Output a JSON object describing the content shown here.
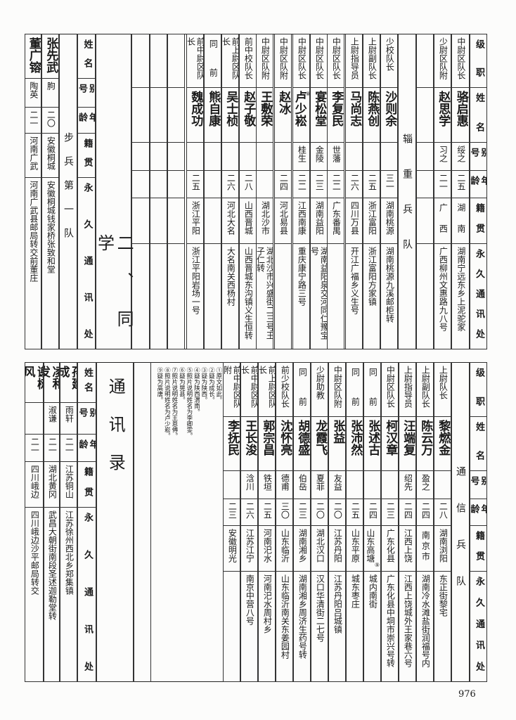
{
  "title_part1": "二、同学",
  "title_part2": "通讯录",
  "page_number": "976",
  "top_right": {
    "header": [
      "级职",
      "姓名",
      "别号",
      "年龄",
      "籍贯",
      "永久通讯处"
    ],
    "unit_title": "辎重兵队",
    "rows": [
      {
        "rank": "中尉区队长",
        "name": "骆启惠",
        "alias": "绥之",
        "age": "二五",
        "origin": "湖南",
        "address": "湖南宁远东乡上泥驼家"
      },
      {
        "rank": "少尉区队附",
        "name": "赵思学",
        "alias": "习之",
        "age": "二一",
        "origin": "广西",
        "address": "广西柳州文惠路九八号"
      },
      {
        "rank": "少校队长",
        "name": "沙则余",
        "alias": "",
        "age": "三一",
        "origin": "湖南桃源",
        "address": "湖南桃源九溪邮柜转"
      },
      {
        "rank": "上尉副队长",
        "name": "陈燕创",
        "alias": "",
        "age": "二五",
        "origin": "浙江富阳",
        "address": "浙江富阳方家镇"
      },
      {
        "rank": "上尉指导员",
        "name": "马尚志",
        "alias": "",
        "age": "二六",
        "origin": "四川万县",
        "address": "开江广福乡义生号"
      },
      {
        "rank": "中尉区队长",
        "name": "李复民",
        "alias": "世藩",
        "age": "二二",
        "origin": "广东番禺",
        "address": ""
      },
      {
        "rank": "中尉区队长",
        "name": "宴松堂",
        "alias": "金陵",
        "age": "二三",
        "origin": "湖南益阳",
        "address": "湖南益阳泉交河同仁豫宝号"
      },
      {
        "rank": "中尉区队长",
        "name": "卢少崧",
        "note": "⑧",
        "alias": "桂生",
        "age": "二二",
        "origin": "江西南康",
        "address": "重庆康宁路三号"
      },
      {
        "rank": "中尉区队附",
        "name": "赵冰",
        "alias": "",
        "age": "二四",
        "origin": "河北易县",
        "address": ""
      },
      {
        "rank": "中尉区队附",
        "name": "王敷荣",
        "alias": "",
        "age": "",
        "origin": "湖北沙市",
        "address": "湖北沙市兴盛街二三号王子仁转"
      },
      {
        "rank": "前中校队长",
        "name": "赵子敬",
        "alias": "",
        "age": "二八",
        "origin": "山西晋城",
        "address": "山西晋城东沟镇义生恒转"
      },
      {
        "rank": "前上尉区队长",
        "name": "吴士桢",
        "alias": "",
        "age": "二六",
        "origin": "河北大名",
        "address": "大名南关西杨村"
      },
      {
        "rank": "同前",
        "name": "熊自康",
        "alias": "",
        "age": "",
        "origin": "",
        "address": ""
      },
      {
        "rank": "前中尉区队长",
        "name": "魏成功",
        "alias": "",
        "age": "二五",
        "origin": "浙江平阳",
        "address": "浙江平阳岩场一号"
      }
    ]
  },
  "top_left": {
    "header": [
      "姓名",
      "别号",
      "年龄",
      "籍贯",
      "永久通讯处"
    ],
    "unit_title": "步兵第一队",
    "rows": [
      {
        "name": "张先武",
        "alias": "朐",
        "age": "二〇",
        "origin": "安徽桐城",
        "address": "安徽桐城钱家桥张致和堂"
      },
      {
        "name": "董广镕",
        "alias": "陶英",
        "age": "二一",
        "origin": "河南广武",
        "address": "河南广武县邮局转交前董庄"
      }
    ]
  },
  "bottom_right": {
    "header": [
      "级职",
      "姓名",
      "别号",
      "年龄",
      "籍贯",
      "永久通讯处"
    ],
    "unit_title": "通信兵队",
    "rows": [
      {
        "rank": "上尉队长",
        "name": "黎燃金",
        "alias": "",
        "age": "二八",
        "origin": "湖南浏阳",
        "address": "东正街黎宅"
      },
      {
        "rank": "上尉副队长",
        "name": "陈云万",
        "alias": "盈之",
        "age": "二四",
        "origin": "南京市",
        "address": "湖南冷水滩盐街润福号内"
      },
      {
        "rank": "上尉指导员",
        "name": "汪端复",
        "alias": "绍先",
        "age": "二四",
        "origin": "江西上饶",
        "address": "江西上饶城外王家巷六号"
      },
      {
        "rank": "中尉区队长",
        "name": "柯汉章",
        "alias": "",
        "age": "二三",
        "origin": "广东化县",
        "address": "广东化县中垌市崇兴号转"
      },
      {
        "rank": "同前",
        "name": "张述古",
        "alias": "",
        "age": "二四",
        "origin": "山东高塘",
        "note_origin": "⑨",
        "address": "城内南街"
      },
      {
        "rank": "同前",
        "name": "张沛然",
        "alias": "",
        "age": "二五",
        "origin": "山东平原",
        "address": "城东枣庄"
      },
      {
        "rank": "中尉区队附",
        "name": "张益",
        "alias": "友益",
        "age": "二〇",
        "origin": "江苏丹阳",
        "address": "江苏丹阳吕城镇"
      },
      {
        "rank": "少尉助教",
        "name": "龙霞飞",
        "alias": "夏菲",
        "age": "二〇",
        "origin": "湖北汉口",
        "address": "汉口华清街二七号"
      },
      {
        "rank": "同前",
        "name": "胡德盛",
        "alias": "伯岳",
        "age": "二三",
        "origin": "湖南湘乡",
        "address": "湖南湘乡周济生药号转"
      },
      {
        "rank": "前少校队长",
        "name": "沈怀亮",
        "alias": "德甫",
        "age": "三〇",
        "origin": "山东临沂",
        "address": "山东临沂南关东姜园村"
      },
      {
        "rank": "前上尉区队长",
        "name": "郭宗昌",
        "alias": "铁垣",
        "age": "二五",
        "origin": "河南汜水",
        "address": "河南汜水周村乡"
      },
      {
        "rank": "前中尉区队长",
        "name": "王长浚",
        "alias": "浛川",
        "age": "二六",
        "origin": "江苏江宁",
        "address": "南京中营八号"
      },
      {
        "rank": "前中尉区队附",
        "name": "李抚民",
        "alias": "",
        "age": "二三",
        "origin": "安徽明光",
        "address": ""
      }
    ]
  },
  "bottom_left": {
    "header": [
      "姓名",
      "别号",
      "年龄",
      "籍贯",
      "永久通讯处"
    ],
    "rows": [
      {
        "name": "孙建成",
        "alias": "雨轩",
        "age": "二一",
        "origin": "江苏铜山",
        "address": "江苏徐州西北乡郑集镇"
      },
      {
        "name": "凌和发",
        "note": "①",
        "alias": "淑谦",
        "age": "二一",
        "origin": "湖北黄冈",
        "address": "武昌大朝街南段圣述迦勒堂转"
      },
      {
        "name": "谢树风",
        "alias": "",
        "age": "二一",
        "origin": "四川峨边",
        "address": "四川峨边沙平邮局转交"
      }
    ]
  },
  "footnotes": [
    "①原文如此。",
    "②疑为成长。",
    "③疑为陕西。",
    "④疑为陕西渭南。",
    "⑤照片说明姓名为李卿雯。",
    "⑥疑为晃县。",
    "⑦照片说明姓名为王恩傅。",
    "⑧照片说明姓名为卢少崧。",
    "⑨疑为高唐。"
  ]
}
